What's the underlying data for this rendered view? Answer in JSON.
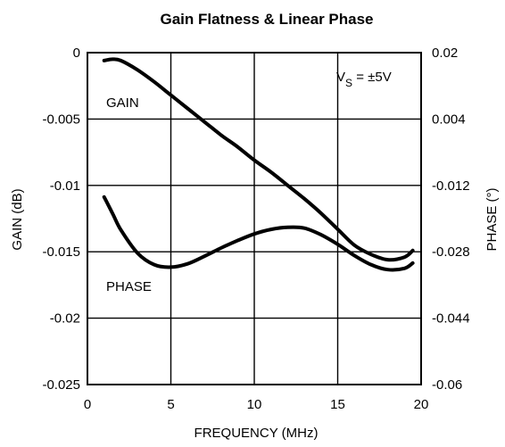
{
  "chart_data": {
    "type": "line",
    "title": "Gain Flatness & Linear Phase",
    "xlabel": "FREQUENCY (MHz)",
    "ylabel_left": "GAIN (dB)",
    "ylabel_right": "PHASE (°)",
    "xlim": [
      0,
      20
    ],
    "ylim_left": [
      -0.025,
      0
    ],
    "ylim_right": [
      -0.06,
      0.02
    ],
    "x_ticks": [
      "0",
      "5",
      "10",
      "15",
      "20"
    ],
    "y_ticks_left": [
      "0",
      "-0.005",
      "-0.01",
      "-0.015",
      "-0.02",
      "-0.025"
    ],
    "y_ticks_right": [
      "0.02",
      "0.004",
      "-0.012",
      "-0.028",
      "-0.044",
      "-0.06"
    ],
    "grid": true,
    "annotation": {
      "main": "V",
      "sub": "S",
      "rest": " = ±5V"
    },
    "series": [
      {
        "name": "GAIN",
        "axis": "left",
        "x": [
          1.0,
          1.5,
          2.0,
          3.0,
          4.0,
          5.0,
          6.0,
          7.0,
          8.0,
          9.0,
          10.0,
          11.0,
          12.0,
          13.0,
          14.0,
          15.0,
          16.0,
          17.0,
          18.0,
          19.0,
          19.5
        ],
        "y": [
          -0.0006,
          -0.0005,
          -0.0006,
          -0.0013,
          -0.0022,
          -0.0032,
          -0.0042,
          -0.0052,
          -0.0062,
          -0.0071,
          -0.0081,
          -0.009,
          -0.01,
          -0.011,
          -0.0121,
          -0.0133,
          -0.0145,
          -0.0152,
          -0.0156,
          -0.0154,
          -0.0149
        ]
      },
      {
        "name": "PHASE",
        "axis": "right",
        "x": [
          1.0,
          1.5,
          2.0,
          3.0,
          4.0,
          5.0,
          6.0,
          7.0,
          8.0,
          9.0,
          10.0,
          11.0,
          12.0,
          13.0,
          14.0,
          15.0,
          16.0,
          17.0,
          18.0,
          19.0,
          19.5
        ],
        "y": [
          -0.0148,
          -0.0187,
          -0.0227,
          -0.0283,
          -0.0311,
          -0.0317,
          -0.0309,
          -0.0291,
          -0.0271,
          -0.0253,
          -0.0237,
          -0.0226,
          -0.0221,
          -0.0223,
          -0.0239,
          -0.0262,
          -0.0289,
          -0.0311,
          -0.0323,
          -0.032,
          -0.0307
        ]
      }
    ]
  }
}
